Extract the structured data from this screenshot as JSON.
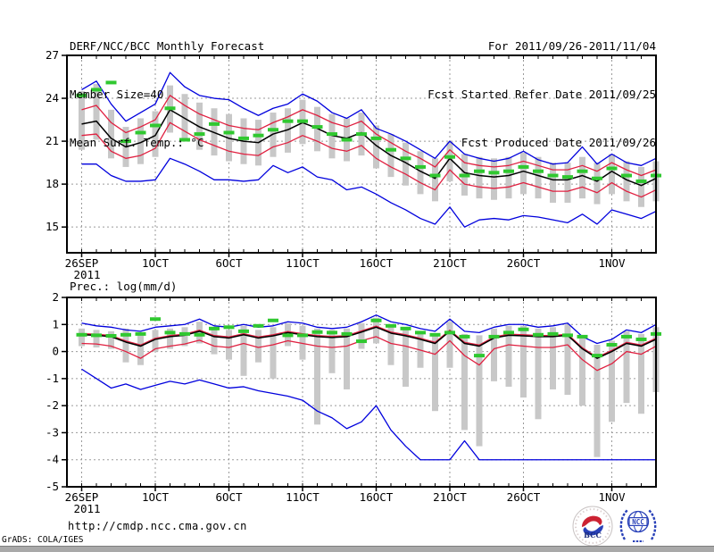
{
  "header": {
    "title": "DERF/NCC/BCC Monthly Forecast",
    "member_size": "Member Size=40",
    "forecast_range": "For 2011/09/26-2011/11/04",
    "refer_date": "Fcst Started Refer Date 2011/09/25",
    "produced_date": "Fcst Produced Date 2011/09/26"
  },
  "footer": {
    "url": "http://cmdp.ncc.cma.gov.cn",
    "credit": "GrADS: COLA/IGES",
    "bcc_logo_text": "BCC",
    "ncc_logo_text": "NCC"
  },
  "colors": {
    "frame": "#000000",
    "grid": "#9a9a9a",
    "ensemble_max_min": "#0000dd",
    "quartile_band": "#e02040",
    "ensemble_mean": "#000000",
    "climatology_dash": "#30c830",
    "spread_bar": "#c8c8c8",
    "logo_blue": "#2840b8",
    "logo_red": "#cc2233",
    "bottom_bar": "#a9a9a9"
  },
  "chart_data": [
    {
      "type": "line",
      "name": "surface-temperature",
      "title": "Mean Surf. Temp.: °C",
      "n_points": 40,
      "ylim": [
        13.2,
        27
      ],
      "yticks": [
        15,
        18,
        21,
        24,
        27
      ],
      "x_ticks": [
        {
          "label": "26SEP",
          "day": 0,
          "sub": "2011"
        },
        {
          "label": "1OCT",
          "day": 5
        },
        {
          "label": "6OCT",
          "day": 10
        },
        {
          "label": "11OCT",
          "day": 15
        },
        {
          "label": "16OCT",
          "day": 20
        },
        {
          "label": "21OCT",
          "day": 25
        },
        {
          "label": "26OCT",
          "day": 30
        },
        {
          "label": "1NOV",
          "day": 36
        }
      ],
      "bars": {
        "name": "ensemble-spread",
        "high": [
          24.5,
          25.0,
          23.2,
          22.0,
          22.6,
          23.1,
          24.9,
          24.3,
          23.7,
          23.3,
          22.9,
          22.6,
          22.5,
          23.0,
          23.3,
          23.9,
          23.4,
          22.9,
          22.6,
          23.0,
          22.1,
          21.5,
          20.9,
          20.3,
          19.8,
          21.0,
          20.1,
          19.9,
          19.8,
          19.9,
          20.2,
          19.9,
          19.5,
          19.5,
          19.9,
          19.5,
          20.1,
          19.6,
          19.2,
          19.6
        ],
        "low": [
          20.4,
          21.1,
          19.8,
          19.2,
          19.4,
          19.9,
          21.6,
          21.0,
          20.4,
          20.0,
          19.6,
          19.4,
          19.3,
          19.9,
          20.2,
          20.8,
          20.3,
          19.8,
          19.6,
          20.0,
          19.1,
          18.5,
          17.9,
          17.3,
          16.8,
          18.2,
          17.2,
          17.0,
          16.9,
          17.0,
          17.3,
          17.0,
          16.7,
          16.7,
          17.0,
          16.6,
          17.3,
          16.8,
          16.4,
          16.8
        ]
      },
      "series": [
        {
          "name": "ensemble-max",
          "color_key": "ensemble_max_min",
          "width": 1.3,
          "values": [
            24.6,
            25.2,
            23.6,
            22.4,
            23.0,
            23.6,
            25.8,
            24.8,
            24.2,
            24.0,
            23.9,
            23.3,
            22.8,
            23.3,
            23.6,
            24.3,
            23.8,
            23.0,
            22.6,
            23.2,
            21.9,
            21.5,
            21.0,
            20.4,
            19.8,
            21.0,
            20.1,
            19.8,
            19.6,
            19.8,
            20.3,
            19.7,
            19.4,
            19.5,
            20.6,
            19.4,
            20.1,
            19.5,
            19.3,
            19.8
          ]
        },
        {
          "name": "ensemble-min",
          "color_key": "ensemble_max_min",
          "width": 1.3,
          "values": [
            19.4,
            19.4,
            18.6,
            18.2,
            18.2,
            18.3,
            19.8,
            19.4,
            18.9,
            18.3,
            18.3,
            18.2,
            18.3,
            19.3,
            18.8,
            19.2,
            18.5,
            18.3,
            17.6,
            17.8,
            17.3,
            16.7,
            16.2,
            15.6,
            15.2,
            16.4,
            15.0,
            15.5,
            15.6,
            15.5,
            15.8,
            15.7,
            15.5,
            15.3,
            15.9,
            15.2,
            16.2,
            15.9,
            15.6,
            16.1
          ]
        },
        {
          "name": "upper-band",
          "color_key": "quartile_band",
          "width": 1.3,
          "values": [
            23.2,
            23.5,
            22.3,
            21.6,
            22.0,
            22.5,
            24.2,
            23.5,
            22.9,
            22.5,
            22.1,
            21.9,
            21.8,
            22.3,
            22.7,
            23.2,
            22.8,
            22.3,
            22.0,
            22.4,
            21.5,
            20.9,
            20.3,
            19.8,
            19.2,
            20.4,
            19.5,
            19.3,
            19.2,
            19.3,
            19.6,
            19.3,
            19.0,
            19.0,
            19.3,
            18.9,
            19.5,
            19.0,
            18.6,
            19.0
          ]
        },
        {
          "name": "lower-band",
          "color_key": "quartile_band",
          "width": 1.3,
          "values": [
            21.4,
            21.5,
            20.3,
            19.8,
            20.0,
            20.5,
            22.3,
            21.7,
            21.1,
            20.7,
            20.3,
            20.1,
            20.0,
            20.6,
            20.9,
            21.4,
            21.0,
            20.5,
            20.3,
            20.7,
            19.8,
            19.2,
            18.7,
            18.1,
            17.6,
            19.0,
            18.0,
            17.8,
            17.7,
            17.8,
            18.1,
            17.8,
            17.5,
            17.5,
            17.8,
            17.4,
            18.1,
            17.5,
            17.1,
            17.6
          ]
        },
        {
          "name": "ensemble-mean",
          "color_key": "ensemble_mean",
          "width": 1.5,
          "values": [
            22.2,
            22.4,
            21.2,
            20.6,
            20.9,
            21.4,
            23.2,
            22.6,
            22.0,
            21.6,
            21.2,
            21.0,
            20.9,
            21.5,
            21.8,
            22.3,
            21.9,
            21.4,
            21.2,
            21.6,
            20.7,
            20.0,
            19.5,
            18.9,
            18.4,
            19.8,
            18.8,
            18.6,
            18.5,
            18.6,
            18.9,
            18.6,
            18.3,
            18.3,
            18.6,
            18.2,
            18.9,
            18.3,
            17.9,
            18.4
          ]
        }
      ],
      "dashes": {
        "name": "climatology",
        "values": [
          24.2,
          24.6,
          25.1,
          21.0,
          21.6,
          22.1,
          23.3,
          21.1,
          21.5,
          22.2,
          21.6,
          21.2,
          21.4,
          21.8,
          22.4,
          22.4,
          22.0,
          21.5,
          21.1,
          21.5,
          21.2,
          20.4,
          19.8,
          19.2,
          18.6,
          19.9,
          18.6,
          18.9,
          18.8,
          18.9,
          19.2,
          18.9,
          18.6,
          18.5,
          18.9,
          18.4,
          19.1,
          18.6,
          18.2,
          18.6
        ]
      }
    },
    {
      "type": "line",
      "name": "precipitation",
      "title": "Prec.: log(mm/d)",
      "n_points": 40,
      "ylim": [
        -5,
        2
      ],
      "yticks": [
        2,
        1,
        0,
        -1,
        -2,
        -3,
        -4,
        -5
      ],
      "x_ticks": [
        {
          "label": "26SEP",
          "day": 0,
          "sub": "2011"
        },
        {
          "label": "1OCT",
          "day": 5
        },
        {
          "label": "6OCT",
          "day": 10
        },
        {
          "label": "11OCT",
          "day": 15
        },
        {
          "label": "16OCT",
          "day": 20
        },
        {
          "label": "21OCT",
          "day": 25
        },
        {
          "label": "26OCT",
          "day": 30
        },
        {
          "label": "1NOV",
          "day": 36
        }
      ],
      "bars": {
        "name": "ensemble-spread",
        "high": [
          0.85,
          0.8,
          0.75,
          0.85,
          0.7,
          0.8,
          0.85,
          0.9,
          1.1,
          0.85,
          0.8,
          0.95,
          0.8,
          0.9,
          1.05,
          0.95,
          0.85,
          0.8,
          0.85,
          1.05,
          1.25,
          1.0,
          0.9,
          0.75,
          0.65,
          1.1,
          0.65,
          0.6,
          0.85,
          0.95,
          0.95,
          0.85,
          0.9,
          1.0,
          0.5,
          0.25,
          0.4,
          0.75,
          0.65,
          0.9
        ],
        "low": [
          0.2,
          0.15,
          0.1,
          -0.4,
          -0.5,
          0.0,
          0.1,
          0.2,
          0.3,
          -0.1,
          -0.3,
          -0.9,
          -0.4,
          -1.0,
          0.2,
          -0.3,
          -2.7,
          -0.8,
          -1.4,
          0.1,
          0.3,
          -0.5,
          -1.3,
          -0.6,
          -2.2,
          -0.6,
          -2.9,
          -3.5,
          -1.1,
          -1.3,
          -1.7,
          -2.5,
          -1.4,
          -1.6,
          -2.0,
          -3.9,
          -2.6,
          -1.9,
          -2.3,
          -1.5
        ]
      },
      "series": [
        {
          "name": "ensemble-max",
          "color_key": "ensemble_max_min",
          "width": 1.3,
          "values": [
            1.05,
            0.95,
            0.9,
            0.8,
            0.75,
            0.9,
            0.95,
            1.0,
            1.2,
            0.95,
            0.9,
            1.0,
            0.9,
            0.95,
            1.1,
            1.05,
            0.9,
            0.85,
            0.9,
            1.1,
            1.35,
            1.1,
            1.0,
            0.85,
            0.75,
            1.2,
            0.75,
            0.7,
            0.9,
            1.0,
            1.0,
            0.9,
            0.95,
            1.05,
            0.55,
            0.3,
            0.45,
            0.8,
            0.7,
            1.0
          ]
        },
        {
          "name": "ensemble-min",
          "color_key": "ensemble_max_min",
          "width": 1.3,
          "values": [
            -0.65,
            -1.0,
            -1.35,
            -1.2,
            -1.4,
            -1.25,
            -1.1,
            -1.2,
            -1.05,
            -1.2,
            -1.35,
            -1.3,
            -1.45,
            -1.55,
            -1.65,
            -1.8,
            -2.2,
            -2.45,
            -2.85,
            -2.6,
            -2.0,
            -2.9,
            -3.5,
            -4.0,
            -4.0,
            -4.0,
            -3.3,
            -4.0,
            -4.0,
            -4.0,
            -4.0,
            -4.0,
            -4.0,
            -4.0,
            -4.0,
            -4.0,
            -4.0,
            -4.0,
            -4.0,
            -4.0
          ]
        },
        {
          "name": "upper-band",
          "color_key": "quartile_band",
          "width": 1.3,
          "values": [
            0.66,
            0.64,
            0.59,
            0.39,
            0.24,
            0.49,
            0.59,
            0.64,
            0.79,
            0.59,
            0.54,
            0.66,
            0.54,
            0.62,
            0.74,
            0.66,
            0.59,
            0.56,
            0.59,
            0.76,
            0.94,
            0.72,
            0.62,
            0.49,
            0.34,
            0.79,
            0.34,
            0.24,
            0.54,
            0.64,
            0.62,
            0.59,
            0.59,
            0.64,
            0.14,
            -0.21,
            0.04,
            0.34,
            0.24,
            0.49
          ]
        },
        {
          "name": "lower-band",
          "color_key": "quartile_band",
          "width": 1.3,
          "values": [
            0.3,
            0.28,
            0.2,
            0.0,
            -0.25,
            0.1,
            0.2,
            0.28,
            0.42,
            0.2,
            0.15,
            0.3,
            0.15,
            0.25,
            0.4,
            0.3,
            0.2,
            0.15,
            0.2,
            0.4,
            0.55,
            0.3,
            0.2,
            0.05,
            -0.1,
            0.4,
            -0.15,
            -0.5,
            0.1,
            0.25,
            0.2,
            0.15,
            0.15,
            0.25,
            -0.3,
            -0.7,
            -0.45,
            0.0,
            -0.1,
            0.2
          ]
        },
        {
          "name": "ensemble-mean",
          "color_key": "ensemble_mean",
          "width": 1.5,
          "values": [
            0.62,
            0.6,
            0.55,
            0.35,
            0.2,
            0.45,
            0.55,
            0.6,
            0.75,
            0.55,
            0.5,
            0.62,
            0.5,
            0.58,
            0.7,
            0.62,
            0.55,
            0.52,
            0.55,
            0.72,
            0.9,
            0.68,
            0.58,
            0.45,
            0.3,
            0.75,
            0.3,
            0.2,
            0.5,
            0.6,
            0.58,
            0.55,
            0.55,
            0.6,
            0.1,
            -0.25,
            0.0,
            0.3,
            0.2,
            0.45
          ]
        }
      ],
      "dashes": {
        "name": "climatology",
        "values": [
          0.62,
          0.6,
          0.58,
          0.62,
          0.65,
          1.2,
          0.7,
          0.65,
          0.62,
          0.85,
          0.9,
          0.75,
          0.95,
          1.15,
          0.6,
          0.6,
          0.72,
          0.7,
          0.65,
          0.38,
          1.15,
          0.95,
          0.85,
          0.7,
          0.62,
          0.7,
          0.55,
          -0.15,
          0.55,
          0.7,
          0.82,
          0.62,
          0.65,
          0.6,
          0.55,
          -0.15,
          0.25,
          0.55,
          0.45,
          0.65
        ]
      }
    }
  ]
}
